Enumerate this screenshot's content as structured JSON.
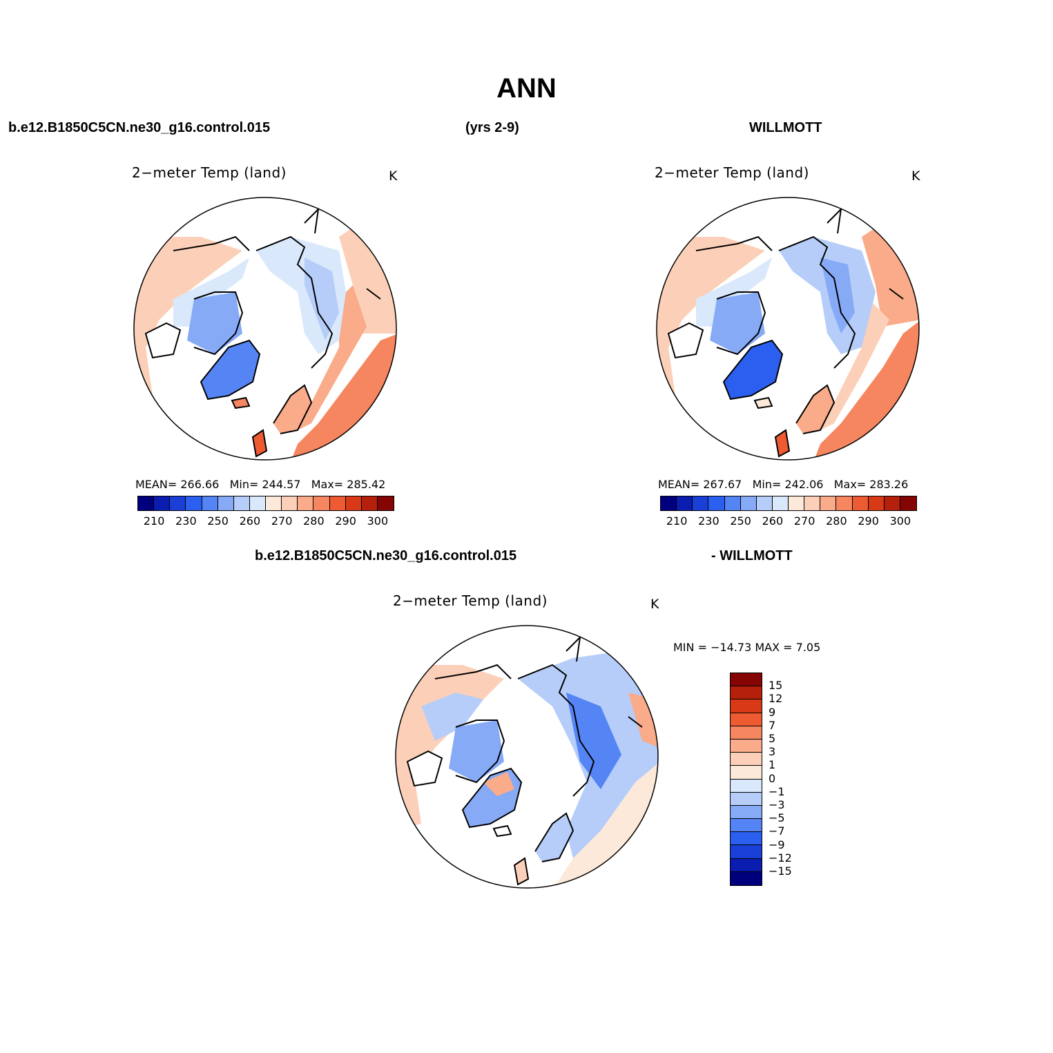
{
  "title": "ANN",
  "header": {
    "case_name": "b.e12.B1850C5CN.ne30_g16.control.015",
    "years": "(yrs 2-9)",
    "obs_name": "WILLMOTT"
  },
  "panels": [
    {
      "title": "2−meter Temp (land)",
      "units": "K",
      "stats": {
        "mean_label": "MEAN=",
        "mean": "266.66",
        "min_label": "Min=",
        "min": "244.57",
        "max_label": "Max=",
        "max": "285.42"
      }
    },
    {
      "title": "2−meter Temp (land)",
      "units": "K",
      "stats": {
        "mean_label": "MEAN=",
        "mean": "267.67",
        "min_label": "Min=",
        "min": "242.06",
        "max_label": "Max=",
        "max": "283.26"
      }
    }
  ],
  "diff_header": {
    "case_name": "b.e12.B1850C5CN.ne30_g16.control.015",
    "obs_name": "- WILLMOTT"
  },
  "diff_panel": {
    "title": "2−meter Temp (land)",
    "units": "K",
    "minmax": "MIN = −14.73 MAX =    7.05"
  },
  "abs_colorbar": {
    "colors": [
      "#00007f",
      "#0b1db0",
      "#1a3fd6",
      "#2b5ff0",
      "#5584f5",
      "#87aaf7",
      "#b5cdf8",
      "#d9e8fb",
      "#fde9d9",
      "#fcd0b8",
      "#f9ab8a",
      "#f58660",
      "#ee5b33",
      "#d83a17",
      "#b5200c",
      "#850404"
    ],
    "ticks": [
      "210",
      "230",
      "250",
      "260",
      "270",
      "280",
      "290",
      "300"
    ]
  },
  "diff_colorbar": {
    "colors": [
      "#850404",
      "#b5200c",
      "#d83a17",
      "#ee5b33",
      "#f58660",
      "#f9ab8a",
      "#fcd0b8",
      "#fde9d9",
      "#d9e8fb",
      "#b5cdf8",
      "#87aaf7",
      "#5584f5",
      "#2b5ff0",
      "#1a3fd6",
      "#0b1db0",
      "#00007f"
    ],
    "labels": [
      "15",
      "12",
      "9",
      "7",
      "5",
      "3",
      "1",
      "0",
      "−1",
      "−3",
      "−5",
      "−7",
      "−9",
      "−12",
      "−15"
    ]
  },
  "chart_data": [
    {
      "type": "heatmap",
      "title": "2−meter Temp (land)",
      "units": "K",
      "projection": "north-polar-stereographic",
      "model": "b.e12.B1850C5CN.ne30_g16.control.015",
      "mean": 266.66,
      "min": 244.57,
      "max": 285.42,
      "contour_levels": [
        210,
        220,
        230,
        240,
        250,
        255,
        260,
        265,
        270,
        275,
        280,
        285,
        290,
        295,
        300
      ]
    },
    {
      "type": "heatmap",
      "title": "2−meter Temp (land)",
      "units": "K",
      "projection": "north-polar-stereographic",
      "model": "WILLMOTT",
      "mean": 267.67,
      "min": 242.06,
      "max": 283.26,
      "contour_levels": [
        210,
        220,
        230,
        240,
        250,
        255,
        260,
        265,
        270,
        275,
        280,
        285,
        290,
        295,
        300
      ]
    },
    {
      "type": "heatmap",
      "title": "2−meter Temp (land)",
      "units": "K",
      "projection": "north-polar-stereographic",
      "model": "b.e12.B1850C5CN.ne30_g16.control.015 - WILLMOTT",
      "min": -14.73,
      "max": 7.05,
      "contour_levels": [
        -15,
        -12,
        -9,
        -7,
        -5,
        -3,
        -1,
        0,
        1,
        3,
        5,
        7,
        9,
        12,
        15
      ]
    }
  ]
}
